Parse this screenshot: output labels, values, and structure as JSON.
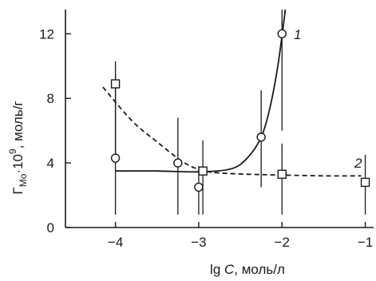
{
  "chart_data": {
    "type": "scatter",
    "xlabel": {
      "main": "lg ",
      "var": "C",
      "rest": ", моль/л"
    },
    "ylabel": {
      "main": "Γ",
      "sub": "Mo",
      "mid": "·10",
      "sup": "9",
      "rest": ", моль/г"
    },
    "xlim": [
      -4.6,
      -0.9
    ],
    "ylim": [
      0,
      13.5
    ],
    "xticks": [
      -4,
      -3,
      -2,
      -1
    ],
    "xtick_labels": [
      "−4",
      "−3",
      "−2",
      "−1"
    ],
    "yticks": [
      0,
      4,
      8,
      12
    ],
    "ytick_labels": [
      "0",
      "4",
      "8",
      "12"
    ],
    "grid": false,
    "series": [
      {
        "name": "1",
        "marker": "circle",
        "line": "solid",
        "points": [
          {
            "x": -4.0,
            "y": 4.3,
            "err_low": 0.8,
            "err_high": 9.5
          },
          {
            "x": -3.25,
            "y": 4.0,
            "err_low": 0.8,
            "err_high": 6.8
          },
          {
            "x": -3.0,
            "y": 2.5,
            "err_low": 0.8,
            "err_high": 3.8
          },
          {
            "x": -2.25,
            "y": 5.6,
            "err_low": 2.5,
            "err_high": 8.5
          },
          {
            "x": -2.0,
            "y": 12.0,
            "err_low": 6.0,
            "err_high": 13.5
          }
        ],
        "curve": [
          [
            -4.0,
            3.5
          ],
          [
            -3.5,
            3.5
          ],
          [
            -3.0,
            3.45
          ],
          [
            -2.6,
            3.65
          ],
          [
            -2.4,
            4.4
          ],
          [
            -2.25,
            5.6
          ],
          [
            -2.15,
            7.3
          ],
          [
            -2.05,
            10.0
          ],
          [
            -1.96,
            13.5
          ]
        ]
      },
      {
        "name": "2",
        "marker": "square",
        "line": "dashed",
        "points": [
          {
            "x": -4.0,
            "y": 8.9,
            "err_low": 4.0,
            "err_high": 10.3
          },
          {
            "x": -2.95,
            "y": 3.5,
            "err_low": 0.8,
            "err_high": 5.4
          },
          {
            "x": -2.0,
            "y": 3.3,
            "err_low": 0.8,
            "err_high": 5.2
          },
          {
            "x": -1.0,
            "y": 2.8,
            "err_low": 0.8,
            "err_high": 4.5
          }
        ],
        "curve": [
          [
            -4.15,
            8.7
          ],
          [
            -3.8,
            6.6
          ],
          [
            -3.5,
            5.3
          ],
          [
            -3.2,
            4.1
          ],
          [
            -3.0,
            3.6
          ],
          [
            -2.8,
            3.4
          ],
          [
            -2.4,
            3.3
          ],
          [
            -2.0,
            3.25
          ],
          [
            -1.5,
            3.2
          ],
          [
            -1.05,
            3.2
          ]
        ]
      }
    ]
  }
}
